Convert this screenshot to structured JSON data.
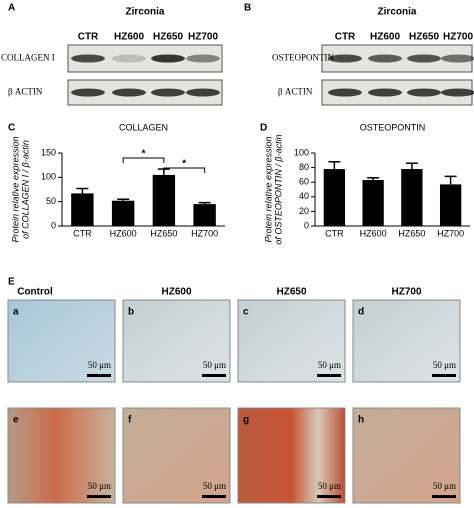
{
  "panel_a": {
    "letter": "A",
    "title": "Zirconia",
    "lanes": [
      "CTR",
      "HZ600",
      "HZ650",
      "HZ700"
    ],
    "rows": [
      "COLLAGEN I",
      "β ACTIN"
    ]
  },
  "panel_b": {
    "letter": "B",
    "title": "Zirconia",
    "lanes": [
      "CTR",
      "HZ600",
      "HZ650",
      "HZ700"
    ],
    "rows": [
      "OSTEOPONTIN",
      "β ACTIN"
    ]
  },
  "chart_data": [
    {
      "type": "bar",
      "letter": "C",
      "title": "COLLAGEN",
      "y_label": [
        "Protein relative expression",
        "of COLLAGEN I / β-actin"
      ],
      "categories": [
        "CTR",
        "HZ600",
        "HZ650",
        "HZ700"
      ],
      "values": [
        67,
        52,
        105,
        45
      ],
      "errors": [
        10,
        3,
        12,
        3
      ],
      "color": "#000000",
      "ylim": [
        0,
        150
      ],
      "yticks": [
        0,
        50,
        100,
        150
      ],
      "annotations": [
        "*",
        "*"
      ]
    },
    {
      "type": "bar",
      "letter": "D",
      "title": "OSTEOPONTIN",
      "y_label": [
        "Protein relative expression",
        "of OSTEOPONTIN / β-actin"
      ],
      "categories": [
        "CTR",
        "HZ600",
        "HZ650",
        "HZ700"
      ],
      "values": [
        78,
        63,
        78,
        57
      ],
      "errors": [
        10,
        3,
        8,
        11
      ],
      "color": "#000000",
      "ylim": [
        0,
        100
      ],
      "yticks": [
        0,
        20,
        40,
        60,
        80,
        100
      ]
    }
  ],
  "panel_e": {
    "letter": "E",
    "columns": [
      "Control",
      "HZ600",
      "HZ650",
      "HZ700"
    ],
    "panels": [
      {
        "letter": "a",
        "scale": "50 μm"
      },
      {
        "letter": "b",
        "scale": "50 μm"
      },
      {
        "letter": "c",
        "scale": "50 μm"
      },
      {
        "letter": "d",
        "scale": "50 μm"
      },
      {
        "letter": "e",
        "scale": "50 μm"
      },
      {
        "letter": "f",
        "scale": "50 μm"
      },
      {
        "letter": "g",
        "scale": "50 μm"
      },
      {
        "letter": "h",
        "scale": "50 μm"
      }
    ]
  }
}
